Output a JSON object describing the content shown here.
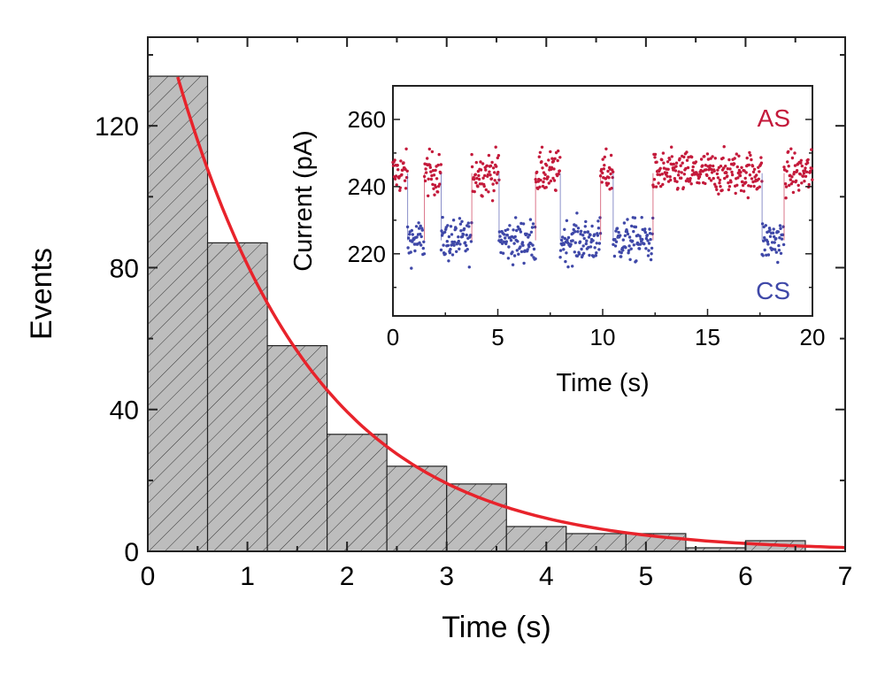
{
  "chart_data": [
    {
      "type": "bar",
      "title": "",
      "xlabel": "Time (s)",
      "ylabel": "Events",
      "xlim": [
        0,
        7
      ],
      "ylim": [
        0,
        145
      ],
      "xticks": [
        "0",
        "1",
        "2",
        "3",
        "4",
        "5",
        "6",
        "7"
      ],
      "yticks": [
        "0",
        "40",
        "80",
        "120"
      ],
      "bin_width": 0.6,
      "bin_starts": [
        0,
        0.6,
        1.2,
        1.8,
        2.4,
        3.0,
        3.6,
        4.2,
        4.8,
        5.4,
        6.0
      ],
      "values": [
        134,
        87,
        58,
        33,
        24,
        19,
        7,
        5,
        5,
        1,
        3
      ],
      "fit": {
        "type": "exponential",
        "amplitude": 166,
        "tau": 1.39,
        "x_start": 0.3,
        "x_end": 7,
        "color": "#e8232b"
      },
      "bar_color": "#bdbdbd"
    },
    {
      "type": "scatter",
      "title": "",
      "xlabel": "Time (s)",
      "ylabel": "Current (pA)",
      "xlim": [
        0,
        20
      ],
      "ylim": [
        201.5,
        270
      ],
      "xticks": [
        "0",
        "5",
        "10",
        "15",
        "20"
      ],
      "yticks": [
        "220",
        "240",
        "260"
      ],
      "levels": {
        "AS": 244,
        "CS": 224
      },
      "legend": [
        {
          "name": "AS",
          "color": "#c41a3b"
        },
        {
          "name": "CS",
          "color": "#3f48a8"
        }
      ],
      "segments": [
        {
          "state": "AS",
          "start": 0,
          "end": 0.7
        },
        {
          "state": "CS",
          "start": 0.7,
          "end": 1.5
        },
        {
          "state": "AS",
          "start": 1.5,
          "end": 2.3
        },
        {
          "state": "CS",
          "start": 2.3,
          "end": 3.76
        },
        {
          "state": "AS",
          "start": 3.76,
          "end": 5.06
        },
        {
          "state": "CS",
          "start": 5.06,
          "end": 6.8
        },
        {
          "state": "AS",
          "start": 6.8,
          "end": 7.98
        },
        {
          "state": "CS",
          "start": 7.98,
          "end": 9.9
        },
        {
          "state": "AS",
          "start": 9.9,
          "end": 10.5
        },
        {
          "state": "CS",
          "start": 10.5,
          "end": 12.4
        },
        {
          "state": "AS",
          "start": 12.4,
          "end": 17.6
        },
        {
          "state": "CS",
          "start": 17.6,
          "end": 18.65
        },
        {
          "state": "AS",
          "start": 18.65,
          "end": 20
        }
      ]
    }
  ]
}
